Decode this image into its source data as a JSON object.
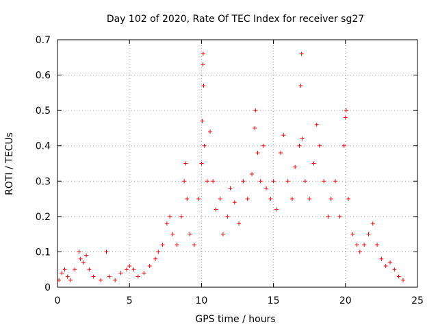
{
  "chart_data": {
    "type": "scatter",
    "title": "Day 102 of 2020, Rate Of TEC Index for receiver sg27",
    "xlabel": "GPS time / hours",
    "ylabel": "ROTI / TECUs",
    "xlim": [
      0,
      25
    ],
    "ylim": [
      0,
      0.7
    ],
    "xticks": [
      0,
      5,
      10,
      15,
      20,
      25
    ],
    "yticks": [
      0,
      0.1,
      0.2,
      0.3,
      0.4,
      0.5,
      0.6,
      0.7
    ],
    "xtick_labels": [
      "0",
      "5",
      "10",
      "15",
      "20",
      "25"
    ],
    "ytick_labels": [
      "0",
      "0.1",
      "0.2",
      "0.3",
      "0.4",
      "0.5",
      "0.6",
      "0.7"
    ],
    "grid": true,
    "marker": "+",
    "color": "#ff0000",
    "series": [
      {
        "name": "ROTI",
        "points": [
          [
            0.1,
            0.02
          ],
          [
            0.3,
            0.04
          ],
          [
            0.5,
            0.05
          ],
          [
            0.7,
            0.03
          ],
          [
            0.9,
            0.02
          ],
          [
            1.2,
            0.05
          ],
          [
            1.5,
            0.1
          ],
          [
            1.6,
            0.08
          ],
          [
            1.8,
            0.07
          ],
          [
            2.0,
            0.09
          ],
          [
            2.2,
            0.05
          ],
          [
            2.5,
            0.03
          ],
          [
            3.0,
            0.02
          ],
          [
            3.4,
            0.1
          ],
          [
            3.6,
            0.03
          ],
          [
            4.0,
            0.02
          ],
          [
            4.4,
            0.04
          ],
          [
            4.8,
            0.05
          ],
          [
            5.0,
            0.06
          ],
          [
            5.3,
            0.05
          ],
          [
            5.6,
            0.03
          ],
          [
            6.0,
            0.04
          ],
          [
            6.4,
            0.06
          ],
          [
            6.8,
            0.08
          ],
          [
            7.0,
            0.1
          ],
          [
            7.3,
            0.12
          ],
          [
            7.6,
            0.18
          ],
          [
            7.8,
            0.2
          ],
          [
            8.0,
            0.15
          ],
          [
            8.3,
            0.12
          ],
          [
            8.6,
            0.2
          ],
          [
            8.8,
            0.3
          ],
          [
            8.9,
            0.35
          ],
          [
            9.0,
            0.25
          ],
          [
            9.2,
            0.15
          ],
          [
            9.5,
            0.12
          ],
          [
            9.8,
            0.25
          ],
          [
            10.0,
            0.35
          ],
          [
            10.05,
            0.47
          ],
          [
            10.1,
            0.63
          ],
          [
            10.12,
            0.66
          ],
          [
            10.15,
            0.57
          ],
          [
            10.2,
            0.4
          ],
          [
            10.4,
            0.3
          ],
          [
            10.6,
            0.44
          ],
          [
            10.8,
            0.3
          ],
          [
            11.0,
            0.22
          ],
          [
            11.3,
            0.25
          ],
          [
            11.5,
            0.15
          ],
          [
            11.8,
            0.2
          ],
          [
            12.0,
            0.28
          ],
          [
            12.3,
            0.24
          ],
          [
            12.6,
            0.18
          ],
          [
            12.9,
            0.3
          ],
          [
            13.2,
            0.25
          ],
          [
            13.5,
            0.32
          ],
          [
            13.7,
            0.45
          ],
          [
            13.75,
            0.5
          ],
          [
            13.9,
            0.38
          ],
          [
            14.1,
            0.3
          ],
          [
            14.3,
            0.4
          ],
          [
            14.5,
            0.28
          ],
          [
            14.8,
            0.25
          ],
          [
            15.0,
            0.3
          ],
          [
            15.2,
            0.22
          ],
          [
            15.5,
            0.38
          ],
          [
            15.7,
            0.43
          ],
          [
            16.0,
            0.3
          ],
          [
            16.3,
            0.25
          ],
          [
            16.5,
            0.34
          ],
          [
            16.8,
            0.4
          ],
          [
            16.9,
            0.57
          ],
          [
            16.95,
            0.66
          ],
          [
            17.0,
            0.42
          ],
          [
            17.2,
            0.3
          ],
          [
            17.5,
            0.25
          ],
          [
            17.8,
            0.35
          ],
          [
            18.0,
            0.46
          ],
          [
            18.2,
            0.4
          ],
          [
            18.5,
            0.3
          ],
          [
            18.8,
            0.2
          ],
          [
            19.0,
            0.25
          ],
          [
            19.3,
            0.3
          ],
          [
            19.6,
            0.2
          ],
          [
            19.9,
            0.4
          ],
          [
            20.0,
            0.48
          ],
          [
            20.05,
            0.5
          ],
          [
            20.2,
            0.25
          ],
          [
            20.5,
            0.15
          ],
          [
            20.8,
            0.12
          ],
          [
            21.0,
            0.1
          ],
          [
            21.3,
            0.12
          ],
          [
            21.6,
            0.15
          ],
          [
            21.9,
            0.18
          ],
          [
            22.2,
            0.12
          ],
          [
            22.5,
            0.08
          ],
          [
            22.8,
            0.06
          ],
          [
            23.1,
            0.07
          ],
          [
            23.4,
            0.05
          ],
          [
            23.7,
            0.03
          ],
          [
            24.0,
            0.02
          ]
        ]
      }
    ]
  }
}
